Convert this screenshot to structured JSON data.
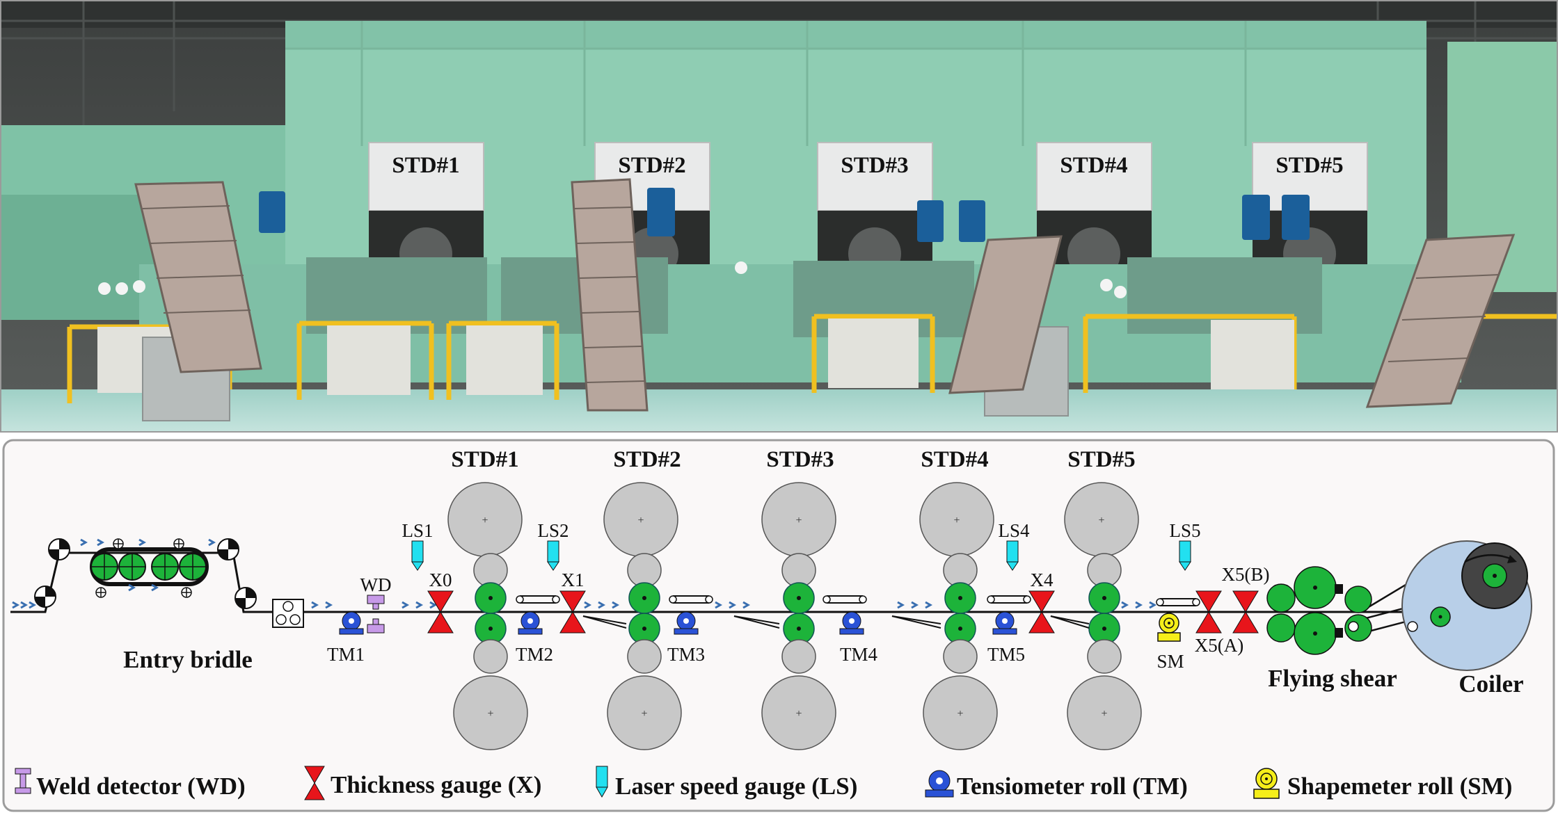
{
  "photo": {
    "stand_labels": [
      "STD#1",
      "STD#2",
      "STD#3",
      "STD#4",
      "STD#5"
    ]
  },
  "diagram": {
    "stand_labels": [
      "STD#1",
      "STD#2",
      "STD#3",
      "STD#4",
      "STD#5"
    ],
    "thickness_gauges": [
      "X0",
      "X1",
      "X4",
      "X5(A)",
      "X5(B)"
    ],
    "laser_speed_gauges": [
      "LS1",
      "LS2",
      "LS4",
      "LS5"
    ],
    "tensiometer_rolls": [
      "TM1",
      "TM2",
      "TM3",
      "TM4",
      "TM5"
    ],
    "weld_detector": "WD",
    "shapemeter": "SM",
    "entry_bridle": "Entry bridle",
    "flying_shear": "Flying shear",
    "coiler": "Coiler"
  },
  "legend": [
    {
      "icon": "weld-detector-icon",
      "label": "Weld detector (WD)"
    },
    {
      "icon": "thickness-gauge-icon",
      "label": "Thickness gauge (X)"
    },
    {
      "icon": "laser-speed-gauge-icon",
      "label": "Laser speed gauge (LS)"
    },
    {
      "icon": "tensiometer-roll-icon",
      "label": "Tensiometer roll (TM)"
    },
    {
      "icon": "shapemeter-roll-icon",
      "label": "Shapemeter roll (SM)"
    }
  ],
  "colors": {
    "mill_body": "#8fcdb3",
    "roll_grey": "#c8c8c8",
    "work_roll": "#1db33a",
    "gauge_red": "#e8151b",
    "laser_cyan": "#22e0f0",
    "tensiometer_blue": "#2a52d6",
    "weld_purple": "#c79ae8",
    "shapemeter_yellow": "#f5ee1a",
    "coiler_blue": "#b8cfe8",
    "strip_arrow": "#3a6fb0"
  }
}
